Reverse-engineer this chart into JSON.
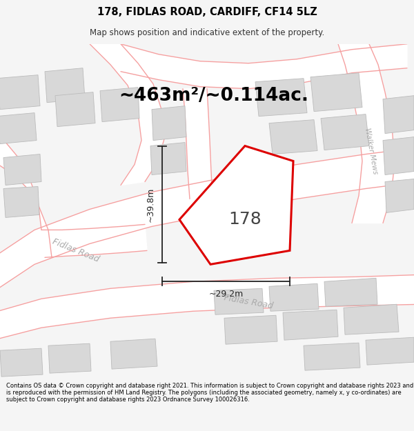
{
  "title": "178, FIDLAS ROAD, CARDIFF, CF14 5LZ",
  "subtitle": "Map shows position and indicative extent of the property.",
  "area_text": "~463m²/~0.114ac.",
  "dim_width": "~29.2m",
  "dim_height": "~39.8m",
  "property_label": "178",
  "footer": "Contains OS data © Crown copyright and database right 2021. This information is subject to Crown copyright and database rights 2023 and is reproduced with the permission of HM Land Registry. The polygons (including the associated geometry, namely x, y co-ordinates) are subject to Crown copyright and database rights 2023 Ordnance Survey 100026316.",
  "bg_color": "#f5f5f5",
  "map_bg": "#f0f0f0",
  "road_color": "#f5a0a0",
  "road_bg": "#ffffff",
  "building_fill": "#d8d8d8",
  "building_edge": "#bbbbbb",
  "property_fill": "#ffffff",
  "property_edge": "#dd0000",
  "title_color": "#000000",
  "subtitle_color": "#333333",
  "road_label_color": "#aaaaaa",
  "dim_color": "#222222",
  "area_color": "#000000",
  "footer_color": "#000000",
  "header_bg": "#ffffff",
  "footer_bg": "#ffffff"
}
